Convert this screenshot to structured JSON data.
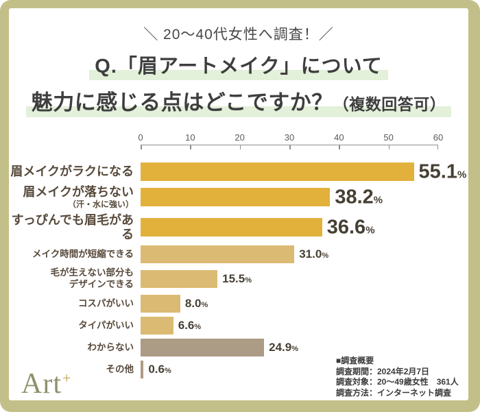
{
  "header": {
    "subtitle": "＼ 20〜40代女性へ調査！／",
    "title_line1": "Q.「眉アートメイク」について",
    "title_line2": "魅力に感じる点はどこですか？",
    "title_line2_note": "（複数回答可）"
  },
  "chart_data": {
    "type": "bar",
    "orientation": "horizontal",
    "title": "Q.「眉アートメイク」について魅力に感じる点はどこですか？（複数回答可）",
    "unit": "%",
    "xlim": [
      0,
      60
    ],
    "ticks": [
      0,
      10,
      20,
      30,
      40,
      50,
      60
    ],
    "grid": false,
    "legend": false,
    "categories": [
      "眉メイクがラクになる",
      "眉メイクが落ちない（汗・水に強い）",
      "すっぴんでも眉毛がある",
      "メイク時間が短縮できる",
      "毛が生えない部分もデザインできる",
      "コスパがいい",
      "タイパがいい",
      "わからない",
      "その他"
    ],
    "values": [
      55.1,
      38.2,
      36.6,
      31.0,
      15.5,
      8.0,
      6.6,
      24.9,
      0.6
    ],
    "bars": [
      {
        "label": "眉メイクがラクになる",
        "sublabel": "",
        "value": 55.1,
        "display": "55.1",
        "color": "#E2B13C",
        "emphasis": "large"
      },
      {
        "label": "眉メイクが落ちない",
        "sublabel": "（汗・水に強い）",
        "value": 38.2,
        "display": "38.2",
        "color": "#E2B13C",
        "emphasis": "large"
      },
      {
        "label": "すっぴんでも眉毛がある",
        "sublabel": "",
        "value": 36.6,
        "display": "36.6",
        "color": "#E2B13C",
        "emphasis": "large"
      },
      {
        "label": "メイク時間が短縮できる",
        "sublabel": "",
        "value": 31.0,
        "display": "31.0",
        "color": "#DBBB73",
        "emphasis": "small"
      },
      {
        "label": "毛が生えない部分も",
        "sublabel": "デザインできる",
        "value": 15.5,
        "display": "15.5",
        "color": "#DBBB73",
        "emphasis": "small"
      },
      {
        "label": "コスパがいい",
        "sublabel": "",
        "value": 8.0,
        "display": "8.0",
        "color": "#DBBB73",
        "emphasis": "small"
      },
      {
        "label": "タイパがいい",
        "sublabel": "",
        "value": 6.6,
        "display": "6.6",
        "color": "#DBBB73",
        "emphasis": "small"
      },
      {
        "label": "わからない",
        "sublabel": "",
        "value": 24.9,
        "display": "24.9",
        "color": "#AC9B85",
        "emphasis": "small"
      },
      {
        "label": "その他",
        "sublabel": "",
        "value": 0.6,
        "display": "0.6",
        "color": "#AC9B85",
        "emphasis": "small"
      }
    ]
  },
  "survey_info": {
    "heading": "■調査概要",
    "line1": "調査期間：2024年2月7日",
    "line2": "調査対象：20〜49歳女性　361人",
    "line3": "調査方法：インターネット調査"
  },
  "logo": {
    "text": "Art",
    "plus": "+"
  },
  "colors": {
    "frame": "#C3BF88",
    "card": "#FFFFFF",
    "highlight": "#E3F0DA",
    "bar_gold": "#E2B13C",
    "bar_tan": "#DBBB73",
    "bar_gray": "#AC9B85",
    "text_dark": "#3E3E3E",
    "label_brown": "#57493B",
    "logo_olive": "#90906E",
    "logo_plus_gold": "#C9A44E"
  }
}
